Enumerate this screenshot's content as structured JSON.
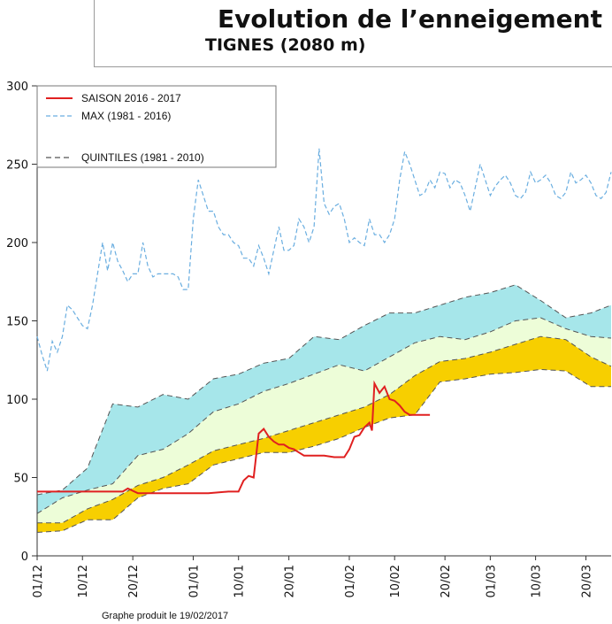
{
  "header": {
    "title": "Evolution de l’enneigement",
    "subtitle": "TIGNES (2080 m)"
  },
  "footer": {
    "text": "Graphe produit le 19/02/2017"
  },
  "colors": {
    "season": "#e02020",
    "max": "#6aaee0",
    "quintile_line": "#555555",
    "band_q80_max": "#a6e6ea",
    "band_q60_q80": "#edfdd8",
    "band_q40_q60": "#f7cf00"
  },
  "chart_data": {
    "type": "line",
    "title": "Evolution de l’enneigement",
    "xlabel": "",
    "ylabel": "",
    "ylim": [
      0,
      300
    ],
    "yticks": [
      0,
      50,
      100,
      150,
      200,
      250,
      300
    ],
    "xlim_days": [
      0,
      114
    ],
    "x_ticks": [
      {
        "label": "01/12",
        "day": 0
      },
      {
        "label": "10/12",
        "day": 9
      },
      {
        "label": "20/12",
        "day": 19
      },
      {
        "label": "01/01",
        "day": 31
      },
      {
        "label": "10/01",
        "day": 40
      },
      {
        "label": "20/01",
        "day": 50
      },
      {
        "label": "01/02",
        "day": 62
      },
      {
        "label": "10/02",
        "day": 71
      },
      {
        "label": "20/02",
        "day": 81
      },
      {
        "label": "01/03",
        "day": 90
      },
      {
        "label": "10/03",
        "day": 99
      },
      {
        "label": "20/03",
        "day": 109
      }
    ],
    "legend": {
      "position": "top-left",
      "entries": [
        {
          "label": "SAISON 2016 - 2017",
          "style": "solid-red"
        },
        {
          "label": "MAX (1981 - 2016)",
          "style": "dashed-blue"
        },
        {
          "label": "QUINTILES (1981 - 2010)",
          "style": "dashed-grey"
        }
      ]
    },
    "quintiles": {
      "days": [
        0,
        5,
        10,
        15,
        20,
        25,
        30,
        35,
        40,
        45,
        50,
        55,
        60,
        65,
        70,
        75,
        80,
        85,
        90,
        95,
        100,
        105,
        110,
        114
      ],
      "q20": [
        15,
        16,
        23,
        23,
        37,
        43,
        46,
        58,
        62,
        66,
        66,
        70,
        75,
        82,
        88,
        90,
        111,
        113,
        116,
        117,
        119,
        118,
        108,
        108
      ],
      "q40": [
        21,
        21,
        30,
        36,
        45,
        50,
        58,
        67,
        71,
        75,
        80,
        85,
        90,
        95,
        103,
        115,
        124,
        126,
        130,
        135,
        140,
        138,
        127,
        121
      ],
      "q60": [
        27,
        37,
        42,
        46,
        64,
        68,
        78,
        92,
        97,
        105,
        110,
        116,
        122,
        118,
        127,
        136,
        140,
        138,
        143,
        150,
        152,
        145,
        140,
        139
      ],
      "q80": [
        39,
        42,
        56,
        97,
        95,
        103,
        100,
        113,
        116,
        123,
        126,
        140,
        138,
        147,
        155,
        155,
        160,
        165,
        168,
        173,
        163,
        152,
        155,
        160
      ]
    },
    "series": [
      {
        "name": "SAISON 2016 - 2017",
        "x": [
          0,
          5,
          10,
          15,
          17,
          18,
          20,
          25,
          30,
          34,
          38,
          40,
          41,
          42,
          43,
          44,
          45,
          46,
          47,
          48,
          49,
          50,
          51,
          52,
          53,
          55,
          57,
          59,
          60,
          61,
          62,
          63,
          64,
          65,
          66,
          66.5,
          67,
          68,
          69,
          70,
          71,
          72,
          73,
          74,
          76,
          78
        ],
        "values": [
          41,
          41,
          41,
          41,
          41,
          43,
          40,
          40,
          40,
          40,
          41,
          41,
          48,
          51,
          50,
          78,
          81,
          76,
          73,
          71,
          71,
          69,
          68,
          66,
          64,
          64,
          64,
          63,
          63,
          63,
          68,
          76,
          77,
          82,
          85,
          80,
          110,
          104,
          108,
          100,
          99,
          96,
          92,
          90,
          90,
          90
        ]
      },
      {
        "name": "MAX (1981 - 2016)",
        "x": [
          0,
          1,
          2,
          3,
          4,
          5,
          6,
          7,
          8,
          9,
          10,
          11,
          12,
          13,
          14,
          15,
          16,
          17,
          18,
          19,
          20,
          21,
          22,
          23,
          24,
          25,
          26,
          27,
          28,
          29,
          30,
          31,
          32,
          33,
          34,
          35,
          36,
          37,
          38,
          39,
          40,
          41,
          42,
          43,
          44,
          45,
          46,
          47,
          48,
          49,
          50,
          51,
          52,
          53,
          54,
          55,
          56,
          57,
          58,
          59,
          60,
          61,
          62,
          63,
          64,
          65,
          66,
          67,
          68,
          69,
          70,
          71,
          72,
          73,
          74,
          75,
          76,
          77,
          78,
          79,
          80,
          81,
          82,
          83,
          84,
          85,
          86,
          87,
          88,
          89,
          90,
          91,
          92,
          93,
          94,
          95,
          96,
          97,
          98,
          99,
          100,
          101,
          102,
          103,
          104,
          105,
          106,
          107,
          108,
          109,
          110,
          111,
          112,
          113,
          114
        ],
        "values": [
          140,
          128,
          118,
          137,
          130,
          140,
          160,
          157,
          152,
          147,
          145,
          160,
          180,
          200,
          182,
          200,
          188,
          182,
          175,
          180,
          180,
          200,
          185,
          178,
          180,
          180,
          180,
          180,
          178,
          170,
          170,
          215,
          240,
          230,
          220,
          220,
          210,
          205,
          205,
          200,
          198,
          190,
          190,
          185,
          198,
          190,
          180,
          195,
          210,
          195,
          195,
          198,
          215,
          210,
          200,
          210,
          260,
          225,
          218,
          223,
          225,
          215,
          200,
          203,
          200,
          198,
          215,
          205,
          205,
          200,
          205,
          215,
          240,
          258,
          250,
          240,
          230,
          232,
          240,
          235,
          245,
          244,
          235,
          240,
          238,
          230,
          220,
          235,
          250,
          240,
          230,
          236,
          240,
          243,
          238,
          230,
          228,
          232,
          245,
          238,
          240,
          243,
          238,
          230,
          228,
          232,
          245,
          238,
          240,
          243,
          238,
          230,
          228,
          232,
          245
        ]
      }
    ]
  }
}
